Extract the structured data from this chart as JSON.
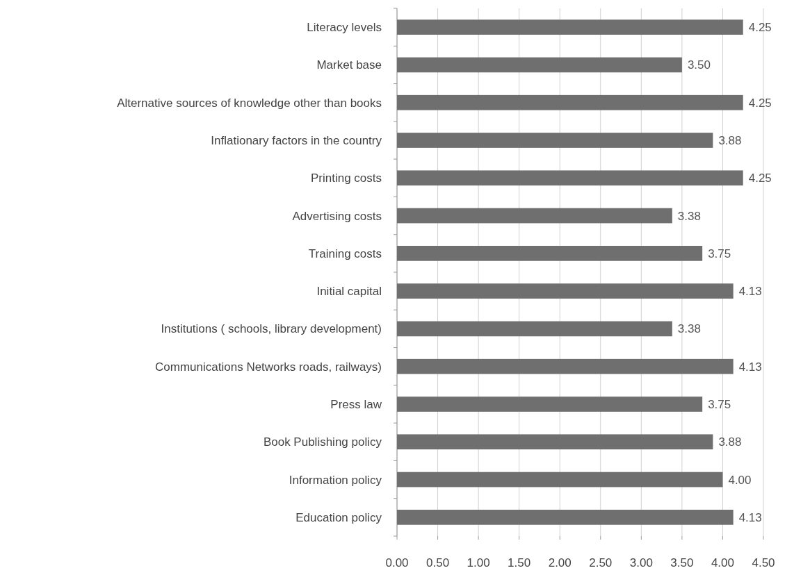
{
  "chart_data": {
    "type": "bar",
    "orientation": "horizontal",
    "categories": [
      "Literacy levels",
      "Market base",
      "Alternative  sources of knowledge other than books",
      "Inflationary factors in the country",
      "Printing costs",
      "Advertising costs",
      "Training costs",
      "Initial capital",
      "Institutions ( schools, library development)",
      "Communications Networks roads, railways)",
      "Press law",
      "Book Publishing policy",
      "Information policy",
      "Education policy"
    ],
    "values": [
      4.25,
      3.5,
      4.25,
      3.88,
      4.25,
      3.38,
      3.75,
      4.13,
      3.38,
      4.13,
      3.75,
      3.88,
      4.0,
      4.13
    ],
    "value_labels": [
      "4.25",
      "3.50",
      "4.25",
      "3.88",
      "4.25",
      "3.38",
      "3.75",
      "4.13",
      "3.38",
      "4.13",
      "3.75",
      "3.88",
      "4.00",
      "4.13"
    ],
    "color": "#6f6f6f",
    "xlim": [
      0,
      4.5
    ],
    "xticks": [
      {
        "value": 0,
        "label": "0.00"
      },
      {
        "value": 0.5,
        "label": "0.50"
      },
      {
        "value": 1,
        "label": "1.00"
      },
      {
        "value": 1.5,
        "label": "1.50"
      },
      {
        "value": 2,
        "label": "2.00"
      },
      {
        "value": 2.5,
        "label": "2.50"
      },
      {
        "value": 3,
        "label": "3.00"
      },
      {
        "value": 3.5,
        "label": "3.50"
      },
      {
        "value": 4,
        "label": "4.00"
      },
      {
        "value": 4.5,
        "label": "4.50"
      }
    ],
    "grid": "x"
  }
}
